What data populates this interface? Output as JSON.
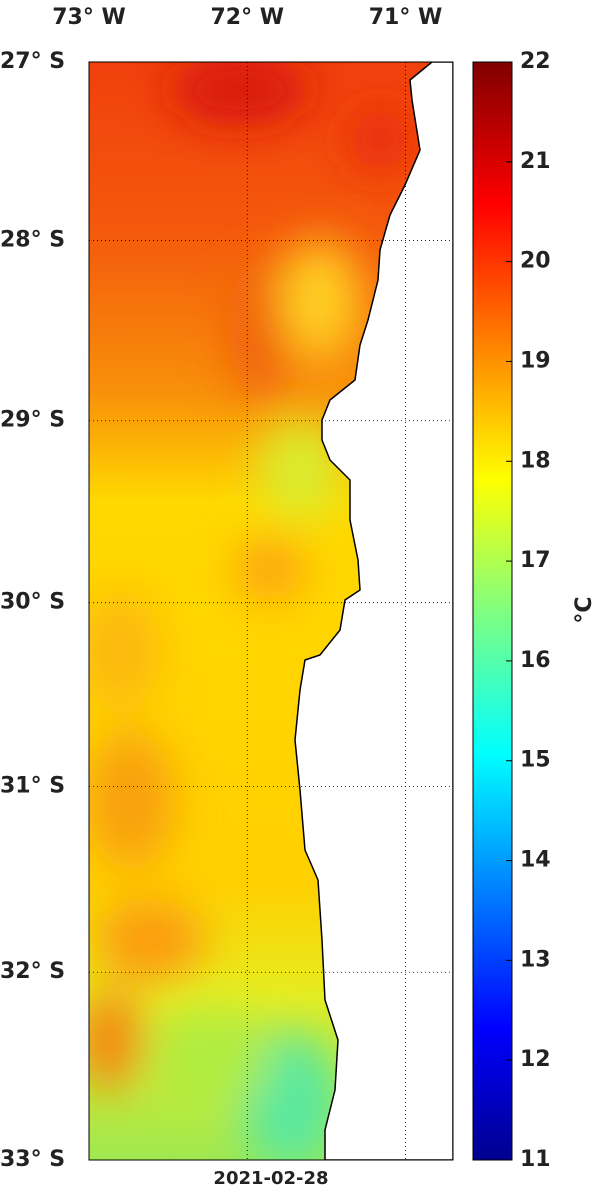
{
  "map": {
    "lonlim": [
      -73,
      -70.7
    ],
    "latlim": [
      -27,
      -33
    ],
    "lon_ticks": [
      {
        "value": -73,
        "label": "73° W"
      },
      {
        "value": -72,
        "label": "72° W"
      },
      {
        "value": -71,
        "label": "71° W"
      }
    ],
    "lat_ticks": [
      {
        "value": -27,
        "label": "27° S"
      },
      {
        "value": -28,
        "label": "28° S"
      },
      {
        "value": -29,
        "label": "29° S"
      },
      {
        "value": -30,
        "label": "30° S"
      },
      {
        "value": -31,
        "label": "31° S"
      },
      {
        "value": -32,
        "label": "32° S"
      },
      {
        "value": -33,
        "label": "33° S"
      }
    ],
    "grid": true,
    "colorbar": {
      "lim": [
        11,
        22
      ],
      "ticks": [
        11,
        12,
        13,
        14,
        15,
        16,
        17,
        18,
        19,
        20,
        21,
        22
      ],
      "unit": "°C"
    },
    "date": "2021-02-28"
  }
}
